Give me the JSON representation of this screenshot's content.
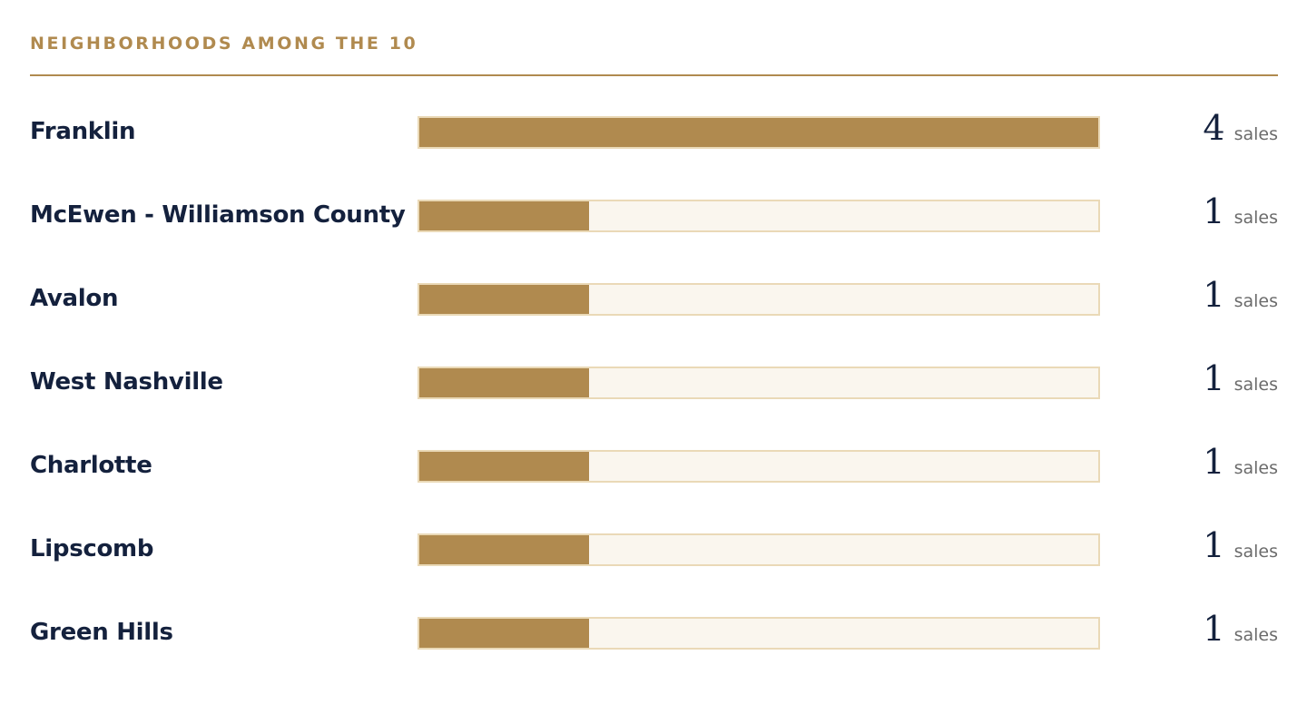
{
  "section": {
    "title": "NEIGHBORHOODS AMONG THE 10"
  },
  "colors": {
    "accent": "#b08a4f",
    "track": "#faf6ee",
    "track_border": "#ead9b7",
    "label": "#14213d",
    "unit": "#6b6b6b"
  },
  "chart_data": {
    "type": "bar",
    "orientation": "horizontal",
    "title": "NEIGHBORHOODS AMONG THE 10",
    "categories": [
      "Franklin",
      "McEwen - Williamson County",
      "Avalon",
      "West Nashville",
      "Charlotte",
      "Lipscomb",
      "Green Hills"
    ],
    "values": [
      4,
      1,
      1,
      1,
      1,
      1,
      1
    ],
    "value_unit": "sales",
    "xlim": [
      0,
      4
    ],
    "grid": false
  }
}
